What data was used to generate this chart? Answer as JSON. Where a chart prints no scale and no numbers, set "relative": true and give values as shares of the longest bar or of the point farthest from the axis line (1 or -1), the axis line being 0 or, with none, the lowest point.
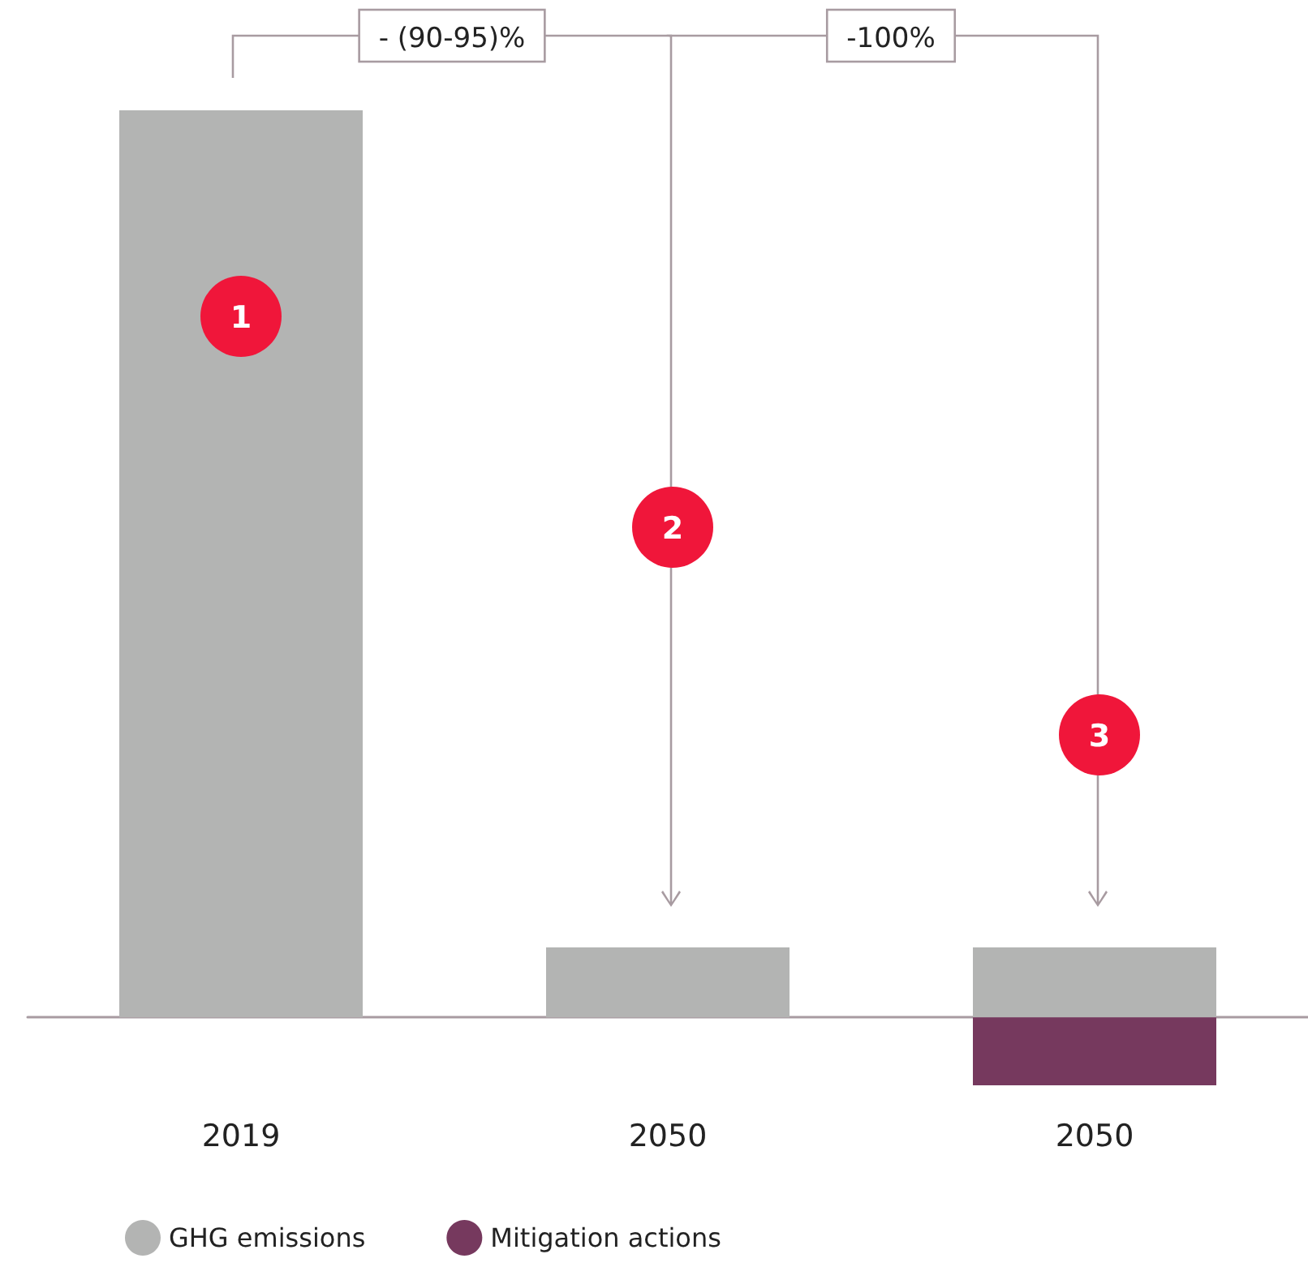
{
  "chart_data": {
    "type": "bar",
    "relative": true,
    "stacked": true,
    "categories": [
      "2019",
      "2050",
      "2050"
    ],
    "series": [
      {
        "name": "GHG emissions",
        "color": "#b3b4b3",
        "values": [
          1,
          0.077,
          0.077
        ]
      },
      {
        "name": "Mitigation actions",
        "color": "#76395e",
        "values": [
          null,
          null,
          -0.075
        ]
      }
    ],
    "annotations": [
      "- (90-95)%",
      "-100%",
      "1",
      "2",
      "3"
    ],
    "legend": "bottom left"
  }
}
